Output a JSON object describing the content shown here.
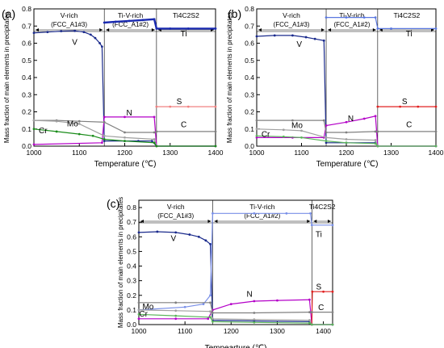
{
  "chart_data": [
    {
      "panel_label": "(a)",
      "type": "line",
      "xlabel": "Temperature (℃)",
      "ylabel": "Mass fraction of  main elements in precipitates",
      "xlim": [
        1000,
        1400
      ],
      "ylim": [
        0.0,
        0.8
      ],
      "xticks": [
        1000,
        1100,
        1200,
        1300,
        1400
      ],
      "yticks": [
        0.0,
        0.1,
        0.2,
        0.3,
        0.4,
        0.5,
        0.6,
        0.7,
        0.8
      ],
      "grid": false,
      "regions": [
        {
          "x_start": 1000,
          "x_end": 1155,
          "name": "V-rich",
          "phase": "(FCC_A1#3)"
        },
        {
          "x_start": 1155,
          "x_end": 1270,
          "name": "Ti-V-rich",
          "phase": "(FCC_A1#2)"
        },
        {
          "x_start": 1270,
          "x_end": 1400,
          "name": "Ti4C2S2",
          "phase": ""
        }
      ],
      "series": [
        {
          "name": "V",
          "color": "#1a2a8c",
          "points": [
            [
              1000,
              0.66
            ],
            [
              1030,
              0.665
            ],
            [
              1060,
              0.67
            ],
            [
              1090,
              0.672
            ],
            [
              1110,
              0.665
            ],
            [
              1125,
              0.65
            ],
            [
              1135,
              0.63
            ],
            [
              1145,
              0.6
            ],
            [
              1150,
              0.58
            ],
            [
              1155,
              0.03
            ],
            [
              1200,
              0.03
            ],
            [
              1230,
              0.03
            ],
            [
              1260,
              0.03
            ],
            [
              1270,
              0.0
            ],
            [
              1400,
              0.0
            ]
          ]
        },
        {
          "name": "Ti",
          "color": "#1a2ab0",
          "points": [
            [
              1155,
              0.72
            ],
            [
              1180,
              0.725
            ],
            [
              1210,
              0.73
            ],
            [
              1240,
              0.735
            ],
            [
              1265,
              0.74
            ],
            [
              1270,
              0.685
            ],
            [
              1300,
              0.685
            ],
            [
              1340,
              0.685
            ],
            [
              1400,
              0.685
            ]
          ]
        },
        {
          "name": "N",
          "color": "#b400c8",
          "points": [
            [
              1000,
              0.01
            ],
            [
              1150,
              0.02
            ],
            [
              1155,
              0.17
            ],
            [
              1200,
              0.17
            ],
            [
              1265,
              0.17
            ],
            [
              1270,
              0.0
            ],
            [
              1400,
              0.0
            ]
          ]
        },
        {
          "name": "S",
          "color": "#f08080",
          "points": [
            [
              1270,
              0.23
            ],
            [
              1300,
              0.23
            ],
            [
              1340,
              0.23
            ],
            [
              1400,
              0.23
            ]
          ]
        },
        {
          "name": "C",
          "color": "#808080",
          "points": [
            [
              1000,
              0.15
            ],
            [
              1050,
              0.15
            ],
            [
              1100,
              0.145
            ],
            [
              1155,
              0.14
            ],
            [
              1200,
              0.08
            ],
            [
              1265,
              0.08
            ],
            [
              1270,
              0.085
            ],
            [
              1400,
              0.085
            ]
          ]
        },
        {
          "name": "Mo",
          "color": "#a0a0a0",
          "points": [
            [
              1000,
              0.15
            ],
            [
              1050,
              0.145
            ],
            [
              1100,
              0.13
            ],
            [
              1155,
              0.06
            ],
            [
              1200,
              0.05
            ],
            [
              1265,
              0.04
            ],
            [
              1270,
              0.0
            ],
            [
              1400,
              0.0
            ]
          ]
        },
        {
          "name": "Cr",
          "color": "#1a8c1a",
          "points": [
            [
              1000,
              0.1
            ],
            [
              1050,
              0.085
            ],
            [
              1100,
              0.07
            ],
            [
              1130,
              0.06
            ],
            [
              1155,
              0.04
            ],
            [
              1200,
              0.03
            ],
            [
              1265,
              0.02
            ],
            [
              1270,
              0.0
            ],
            [
              1400,
              0.0
            ]
          ]
        }
      ],
      "annotations": [
        "V-rich",
        "(FCC_A1#3)",
        "Ti-V-rich",
        "(FCC_A1#2)",
        "Ti4C2S2",
        "V",
        "Ti",
        "N",
        "S",
        "C",
        "Mo",
        "Cr"
      ]
    },
    {
      "panel_label": "(b)",
      "type": "line",
      "xlabel": "Temperature (℃)",
      "ylabel": "Mass fraction of  main elements in precipitates",
      "xlim": [
        1000,
        1400
      ],
      "ylim": [
        0.0,
        0.8
      ],
      "xticks": [
        1000,
        1100,
        1200,
        1300,
        1400
      ],
      "yticks": [
        0.0,
        0.1,
        0.2,
        0.3,
        0.4,
        0.5,
        0.6,
        0.7,
        0.8
      ],
      "grid": false,
      "regions": [
        {
          "x_start": 1000,
          "x_end": 1155,
          "name": "V-rich",
          "phase": "(FCC_A1#3)"
        },
        {
          "x_start": 1155,
          "x_end": 1270,
          "name": "Ti-V-rich",
          "phase": "(FCC_A1#2)"
        },
        {
          "x_start": 1270,
          "x_end": 1400,
          "name": "Ti4C2S2",
          "phase": ""
        }
      ],
      "series": [
        {
          "name": "V",
          "color": "#1a2a8c",
          "points": [
            [
              1000,
              0.64
            ],
            [
              1040,
              0.645
            ],
            [
              1080,
              0.645
            ],
            [
              1110,
              0.635
            ],
            [
              1130,
              0.625
            ],
            [
              1150,
              0.615
            ],
            [
              1155,
              0.02
            ],
            [
              1200,
              0.02
            ],
            [
              1265,
              0.02
            ],
            [
              1270,
              0.0
            ],
            [
              1400,
              0.0
            ]
          ]
        },
        {
          "name": "Ti",
          "color": "#5a78e0",
          "points": [
            [
              1155,
              0.75
            ],
            [
              1200,
              0.75
            ],
            [
              1240,
              0.75
            ],
            [
              1265,
              0.75
            ],
            [
              1270,
              0.685
            ],
            [
              1300,
              0.685
            ],
            [
              1400,
              0.685
            ]
          ]
        },
        {
          "name": "N",
          "color": "#b400c8",
          "points": [
            [
              1000,
              0.05
            ],
            [
              1080,
              0.05
            ],
            [
              1150,
              0.05
            ],
            [
              1155,
              0.12
            ],
            [
              1200,
              0.14
            ],
            [
              1240,
              0.16
            ],
            [
              1265,
              0.175
            ],
            [
              1270,
              0.0
            ],
            [
              1400,
              0.0
            ]
          ]
        },
        {
          "name": "S",
          "color": "#e02020",
          "points": [
            [
              1270,
              0.23
            ],
            [
              1320,
              0.23
            ],
            [
              1360,
              0.23
            ],
            [
              1400,
              0.23
            ]
          ]
        },
        {
          "name": "C",
          "color": "#808080",
          "points": [
            [
              1000,
              0.15
            ],
            [
              1080,
              0.15
            ],
            [
              1150,
              0.15
            ],
            [
              1155,
              0.08
            ],
            [
              1200,
              0.08
            ],
            [
              1265,
              0.085
            ],
            [
              1270,
              0.085
            ],
            [
              1400,
              0.085
            ]
          ]
        },
        {
          "name": "Mo",
          "color": "#a0a0a0",
          "points": [
            [
              1000,
              0.1
            ],
            [
              1060,
              0.095
            ],
            [
              1100,
              0.09
            ],
            [
              1155,
              0.05
            ],
            [
              1200,
              0.04
            ],
            [
              1265,
              0.035
            ],
            [
              1270,
              0.0
            ],
            [
              1400,
              0.0
            ]
          ]
        },
        {
          "name": "Cr",
          "color": "#5ab45a",
          "points": [
            [
              1000,
              0.06
            ],
            [
              1060,
              0.055
            ],
            [
              1100,
              0.05
            ],
            [
              1155,
              0.03
            ],
            [
              1200,
              0.02
            ],
            [
              1265,
              0.015
            ],
            [
              1270,
              0.0
            ],
            [
              1400,
              0.0
            ]
          ]
        }
      ],
      "annotations": [
        "V-rich",
        "(FCC_A1#3)",
        "Ti-V-rich",
        "(FCC_A1#2)",
        "Ti4C2S2",
        "V",
        "Ti",
        "N",
        "S",
        "C",
        "Mo",
        "Cr"
      ]
    },
    {
      "panel_label": "(c)",
      "type": "line",
      "xlabel": "Tempearture (℃)",
      "ylabel": "Mass fraction of  main elements in precipitates",
      "xlim": [
        1000,
        1420
      ],
      "ylim": [
        0.0,
        0.85
      ],
      "xticks": [
        1000,
        1100,
        1200,
        1300,
        1400
      ],
      "yticks": [
        0.0,
        0.1,
        0.2,
        0.3,
        0.4,
        0.5,
        0.6,
        0.7,
        0.8
      ],
      "grid": false,
      "regions": [
        {
          "x_start": 1000,
          "x_end": 1160,
          "name": "V-rich",
          "phase": "(FCC_A1#3)"
        },
        {
          "x_start": 1160,
          "x_end": 1375,
          "name": "Ti-V-rich",
          "phase": "(FCC_A1#2)"
        },
        {
          "x_start": 1375,
          "x_end": 1420,
          "name": "Ti4C2S2",
          "phase": ""
        }
      ],
      "series": [
        {
          "name": "V",
          "color": "#1a2a8c",
          "points": [
            [
              1000,
              0.63
            ],
            [
              1040,
              0.635
            ],
            [
              1080,
              0.63
            ],
            [
              1110,
              0.615
            ],
            [
              1130,
              0.6
            ],
            [
              1145,
              0.575
            ],
            [
              1155,
              0.55
            ],
            [
              1160,
              0.03
            ],
            [
              1250,
              0.025
            ],
            [
              1370,
              0.02
            ],
            [
              1375,
              0.0
            ],
            [
              1420,
              0.0
            ]
          ]
        },
        {
          "name": "Ti",
          "color": "#7a90e8",
          "points": [
            [
              1000,
              0.1
            ],
            [
              1100,
              0.12
            ],
            [
              1140,
              0.14
            ],
            [
              1155,
              0.2
            ],
            [
              1160,
              0.76
            ],
            [
              1250,
              0.76
            ],
            [
              1320,
              0.76
            ],
            [
              1372,
              0.76
            ],
            [
              1375,
              0.68
            ],
            [
              1420,
              0.68
            ]
          ]
        },
        {
          "name": "N",
          "color": "#b400c8",
          "points": [
            [
              1000,
              0.04
            ],
            [
              1080,
              0.04
            ],
            [
              1150,
              0.04
            ],
            [
              1160,
              0.1
            ],
            [
              1200,
              0.14
            ],
            [
              1250,
              0.16
            ],
            [
              1300,
              0.165
            ],
            [
              1370,
              0.17
            ],
            [
              1375,
              0.0
            ],
            [
              1420,
              0.0
            ]
          ]
        },
        {
          "name": "S",
          "color": "#e02020",
          "points": [
            [
              1375,
              0.0
            ],
            [
              1376,
              0.225
            ],
            [
              1400,
              0.225
            ],
            [
              1420,
              0.225
            ]
          ]
        },
        {
          "name": "C",
          "color": "#808080",
          "points": [
            [
              1000,
              0.15
            ],
            [
              1080,
              0.15
            ],
            [
              1155,
              0.15
            ],
            [
              1160,
              0.08
            ],
            [
              1250,
              0.08
            ],
            [
              1370,
              0.085
            ],
            [
              1375,
              0.085
            ],
            [
              1420,
              0.085
            ]
          ]
        },
        {
          "name": "Mo",
          "color": "#a0a0a0",
          "points": [
            [
              1000,
              0.1
            ],
            [
              1080,
              0.095
            ],
            [
              1155,
              0.09
            ],
            [
              1160,
              0.04
            ],
            [
              1250,
              0.035
            ],
            [
              1370,
              0.03
            ],
            [
              1375,
              0.0
            ],
            [
              1420,
              0.0
            ]
          ]
        },
        {
          "name": "Cr",
          "color": "#5ab45a",
          "points": [
            [
              1000,
              0.07
            ],
            [
              1080,
              0.06
            ],
            [
              1155,
              0.05
            ],
            [
              1160,
              0.02
            ],
            [
              1250,
              0.015
            ],
            [
              1370,
              0.01
            ],
            [
              1375,
              0.0
            ],
            [
              1420,
              0.0
            ]
          ]
        }
      ],
      "annotations": [
        "V-rich",
        "(FCC_A1#3)",
        "Ti-V-rich",
        "(FCC_A1#2)",
        "Ti4C2S2",
        "V",
        "Ti",
        "N",
        "S",
        "C",
        "Mo",
        "Cr"
      ]
    }
  ]
}
